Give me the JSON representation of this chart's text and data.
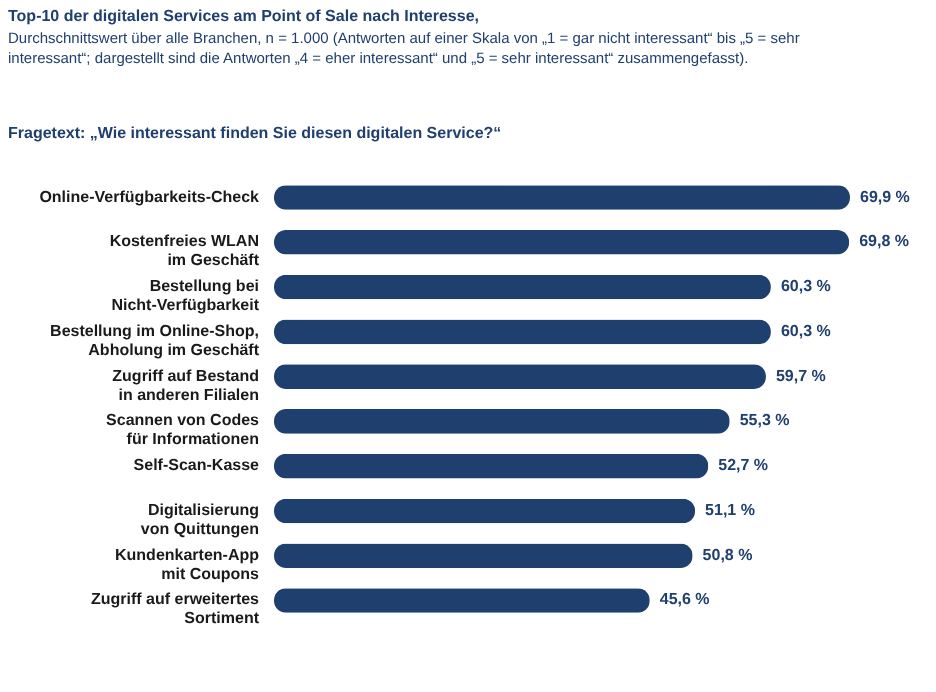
{
  "chart_data": {
    "type": "bar",
    "orientation": "horizontal",
    "title": "Top-10 der digitalen Services am Point of Sale nach Interesse,",
    "subtitle": "Durchschnittswert über alle Branchen, n = 1.000 (Antworten auf einer Skala von „1 = gar nicht interessant“ bis „5 = sehr interessant“; dargestellt sind die Antworten „4 = eher interessant“ und „5 = sehr interessant“ zusammengefasst).",
    "annotations": [
      "Fragetext: „Wie interessant finden Sie diesen digitalen Service?“"
    ],
    "categories": [
      "Online-Verfügbarkeits-Check",
      "Kostenfreies WLAN\nim Geschäft",
      "Bestellung bei\nNicht-Verfügbarkeit",
      "Bestellung im Online-Shop,\nAbholung im Geschäft",
      "Zugriff auf Bestand\nin anderen Filialen",
      "Scannen von Codes\nfür Informationen",
      "Self-Scan-Kasse",
      "Digitalisierung\nvon Quittungen",
      "Kundenkarten-App\nmit Coupons",
      "Zugriff auf erweitertes\nSortiment"
    ],
    "values": [
      69.9,
      69.8,
      60.3,
      60.3,
      59.7,
      55.3,
      52.7,
      51.1,
      50.8,
      45.6
    ],
    "value_labels": [
      "69,9 %",
      "69,8 %",
      "60,3 %",
      "60,3 %",
      "59,7 %",
      "55,3 %",
      "52,7 %",
      "51,1 %",
      "50,8 %",
      "45,6 %"
    ],
    "color": "#1f3f6e",
    "grid": false
  }
}
